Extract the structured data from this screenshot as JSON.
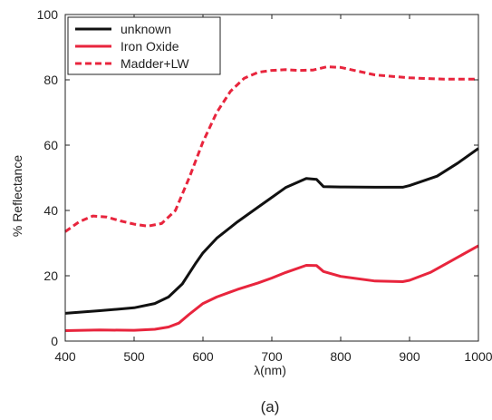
{
  "chart_data": {
    "type": "line",
    "title": "",
    "xlabel": "λ(nm)",
    "ylabel": "% Reflectance",
    "xlim": [
      400,
      1000
    ],
    "ylim": [
      0,
      100
    ],
    "xticks": [
      400,
      500,
      600,
      700,
      800,
      900,
      1000
    ],
    "yticks": [
      0,
      20,
      40,
      60,
      80,
      100
    ],
    "grid": false,
    "legend_position": "top-left",
    "caption": "(a)",
    "series": [
      {
        "name": "unknown",
        "color": "#111111",
        "style": "solid",
        "x": [
          400,
          450,
          500,
          530,
          550,
          570,
          590,
          600,
          620,
          650,
          680,
          700,
          720,
          750,
          765,
          775,
          800,
          850,
          890,
          900,
          940,
          970,
          1000
        ],
        "y": [
          8.5,
          9.3,
          10.2,
          11.5,
          13.5,
          17.5,
          24,
          27,
          31.5,
          36.5,
          41,
          44,
          47,
          49.8,
          49.5,
          47.3,
          47.2,
          47.1,
          47.1,
          47.6,
          50.5,
          54.5,
          59
        ]
      },
      {
        "name": "Iron Oxide",
        "color": "#e8253d",
        "style": "solid",
        "x": [
          400,
          450,
          500,
          530,
          550,
          565,
          580,
          600,
          620,
          650,
          680,
          700,
          720,
          750,
          765,
          775,
          800,
          850,
          890,
          900,
          930,
          960,
          1000
        ],
        "y": [
          3.2,
          3.4,
          3.3,
          3.6,
          4.3,
          5.5,
          8.2,
          11.5,
          13.5,
          15.8,
          17.8,
          19.3,
          21,
          23.2,
          23.1,
          21.3,
          19.8,
          18.4,
          18.2,
          18.6,
          21,
          24.5,
          29.2
        ]
      },
      {
        "name": "Madder+LW",
        "color": "#e8253d",
        "style": "dashed",
        "x": [
          400,
          420,
          440,
          460,
          480,
          500,
          520,
          540,
          560,
          580,
          600,
          620,
          640,
          660,
          680,
          700,
          720,
          740,
          760,
          780,
          800,
          850,
          900,
          950,
          1000
        ],
        "y": [
          33.5,
          36.5,
          38.3,
          38,
          36.8,
          35.8,
          35.2,
          36,
          40,
          50,
          61,
          70,
          76.5,
          80.5,
          82.3,
          82.9,
          83.1,
          82.9,
          83,
          84,
          83.8,
          81.5,
          80.6,
          80.2,
          80.2
        ]
      }
    ]
  }
}
